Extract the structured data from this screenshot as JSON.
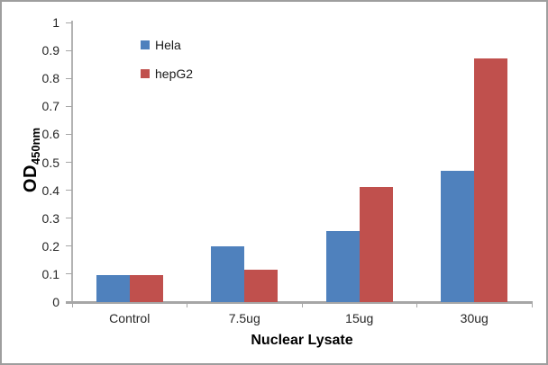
{
  "figure": {
    "background_color": "#ffffff",
    "border_color": "#9e9e9e",
    "axis_color": "#a6a6a6",
    "tick_text_color": "#262626"
  },
  "chart_data": {
    "type": "bar",
    "title": "",
    "xlabel": "Nuclear Lysate",
    "ylabel": "OD",
    "ylabel_subscript": "450nm",
    "categories": [
      "Control",
      "7.5ug",
      "15ug",
      "30ug"
    ],
    "series": [
      {
        "name": "Hela",
        "color": "#4F81BD",
        "values": [
          0.095,
          0.2,
          0.255,
          0.47
        ]
      },
      {
        "name": "hepG2",
        "color": "#C0504D",
        "values": [
          0.095,
          0.115,
          0.41,
          0.87
        ]
      }
    ],
    "ylim": [
      0,
      1
    ],
    "y_ticks": [
      0,
      0.1,
      0.2,
      0.3,
      0.4,
      0.5,
      0.6,
      0.7,
      0.8,
      0.9,
      1
    ],
    "y_tick_labels": [
      "0",
      "0.1",
      "0.2",
      "0.3",
      "0.4",
      "0.5",
      "0.6",
      "0.7",
      "0.8",
      "0.9",
      "1"
    ],
    "grid": false,
    "legend_position": "inside-top-left"
  }
}
